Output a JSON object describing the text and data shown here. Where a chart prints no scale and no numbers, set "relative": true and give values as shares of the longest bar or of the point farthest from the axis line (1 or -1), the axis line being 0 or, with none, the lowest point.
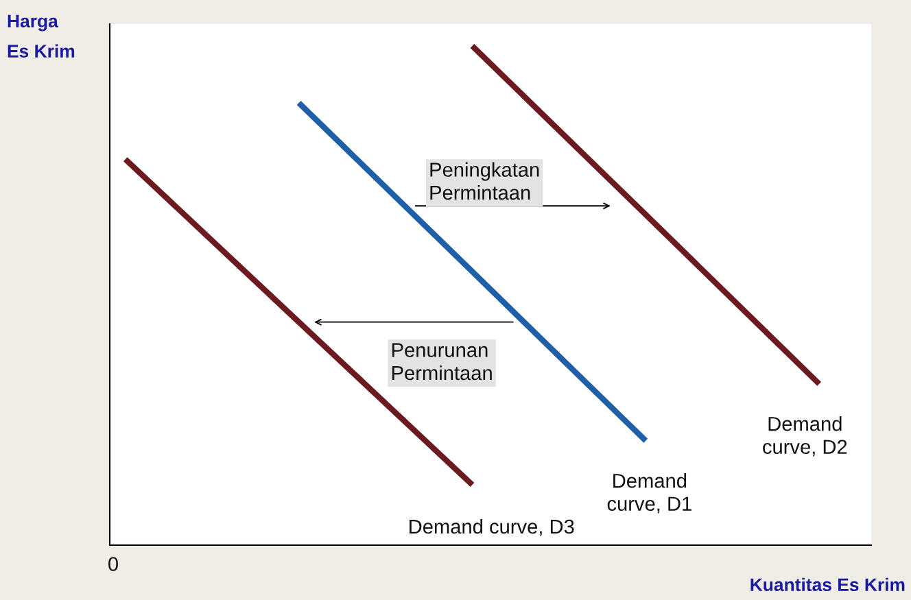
{
  "chart_data": {
    "type": "line",
    "relative": true,
    "xlabel": "Kuantitas Es Krim",
    "ylabel": "Harga\nEs Krim",
    "categories": [
      null,
      null,
      null,
      null,
      null
    ],
    "series": [
      {
        "name": "Demand curve, D3",
        "color": "#6b1a1f",
        "values": [
          0.773,
          0.447,
          0.121,
          null,
          null
        ]
      },
      {
        "name": "Demand\ncurve, D1",
        "color": "#1f5fa8",
        "values": [
          null,
          0.886,
          0.548,
          0.209,
          null
        ]
      },
      {
        "name": "Demand\ncurve, D2",
        "color": "#6b1a1f",
        "values": [
          null,
          null,
          1.0,
          0.662,
          0.323
        ]
      }
    ],
    "annotations": [
      "Peningkatan\nPermintaan",
      "Penurunan\nPermintaan",
      "0"
    ],
    "marker": "none",
    "line_style": "solid"
  }
}
